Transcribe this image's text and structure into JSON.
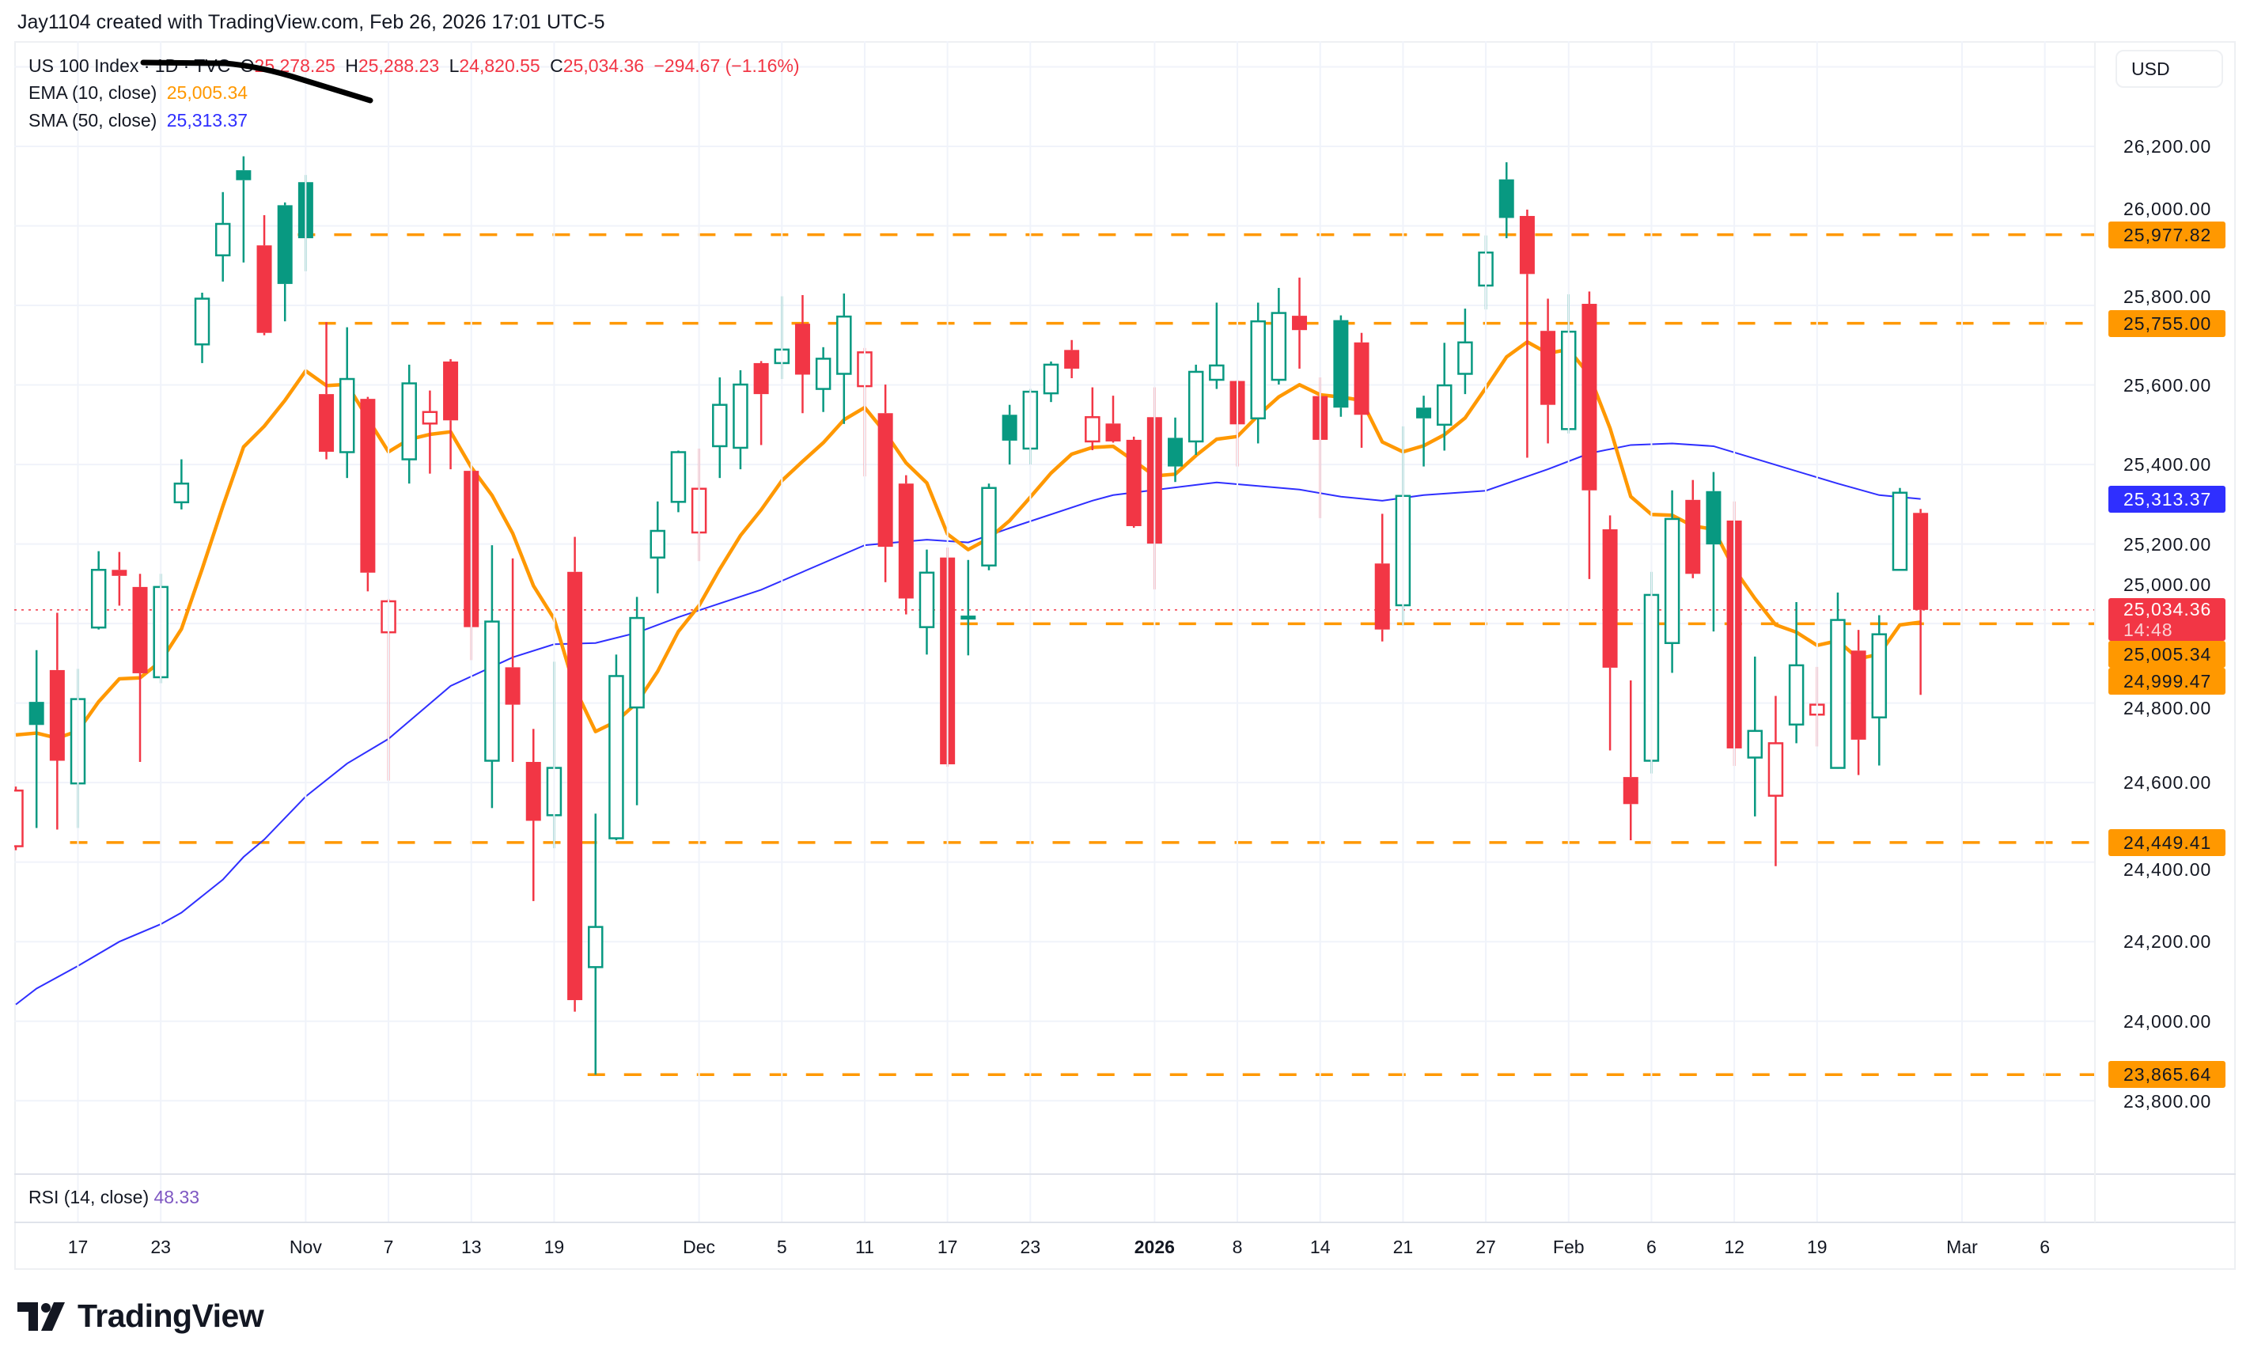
{
  "header": {
    "attribution": "Jay1104 created with TradingView.com, Feb 26, 2026 17:01 UTC-5"
  },
  "legend": {
    "symbol": "US 100 Index · 1D · TVC",
    "o_label": "O",
    "o_value": "25,278.25",
    "h_label": "H",
    "h_value": "25,288.23",
    "l_label": "L",
    "l_value": "24,820.55",
    "c_label": "C",
    "c_value": "25,034.36",
    "change": "−294.67 (−1.16%)",
    "ema_label": "EMA (10, close)",
    "ema_value": "25,005.34",
    "sma_label": "SMA (50, close)",
    "sma_value": "25,313.37"
  },
  "currency_button": "USD",
  "rsi": {
    "label": "RSI (14, close)",
    "value": "48.33"
  },
  "brand": {
    "name": "TradingView"
  },
  "colors": {
    "up": "#089981",
    "down": "#f23645",
    "ema": "#ff9800",
    "sma": "#2f2fff",
    "level": "#ff9800",
    "rsi": "#7e57c2"
  },
  "chart_data": {
    "type": "candlestick",
    "title": "US 100 Index · 1D · TVC",
    "ylim": [
      23740,
      26460
    ],
    "y_ticks": [
      "26,200.00",
      "26,000.00",
      "25,800.00",
      "25,600.00",
      "25,400.00",
      "25,200.00",
      "25,000.00",
      "24,800.00",
      "24,600.00",
      "24,400.00",
      "24,200.00",
      "24,000.00",
      "23,800.00"
    ],
    "y_tick_values": [
      26200,
      26000,
      25800,
      25600,
      25400,
      25200,
      25000,
      24800,
      24600,
      24400,
      24200,
      24000,
      23800
    ],
    "x_ticks": [
      {
        "label": "17",
        "bar": 3
      },
      {
        "label": "23",
        "bar": 7
      },
      {
        "label": "Nov",
        "bar": 14
      },
      {
        "label": "7",
        "bar": 18
      },
      {
        "label": "13",
        "bar": 22
      },
      {
        "label": "19",
        "bar": 26
      },
      {
        "label": "Dec",
        "bar": 33
      },
      {
        "label": "5",
        "bar": 37
      },
      {
        "label": "11",
        "bar": 41
      },
      {
        "label": "17",
        "bar": 45
      },
      {
        "label": "23",
        "bar": 49
      },
      {
        "label": "2026",
        "bar": 55,
        "bold": true
      },
      {
        "label": "8",
        "bar": 59
      },
      {
        "label": "14",
        "bar": 63
      },
      {
        "label": "21",
        "bar": 67
      },
      {
        "label": "27",
        "bar": 71
      },
      {
        "label": "Feb",
        "bar": 75
      },
      {
        "label": "6",
        "bar": 79
      },
      {
        "label": "12",
        "bar": 83
      },
      {
        "label": "19",
        "bar": 87
      },
      {
        "label": "Mar",
        "bar": 94
      },
      {
        "label": "6",
        "bar": 98
      }
    ],
    "candles_fields": [
      "date",
      "open",
      "high",
      "low",
      "close"
    ],
    "candles": [
      [
        "2025-10-14",
        24440,
        24590,
        24430,
        24580
      ],
      [
        "2025-10-15",
        24803,
        24933,
        24486,
        24745
      ],
      [
        "2025-10-16",
        24883,
        25027,
        24482,
        24655
      ],
      [
        "2025-10-17",
        24598,
        24886,
        24486,
        24810
      ],
      [
        "2025-10-20",
        24990,
        25182,
        24985,
        25135
      ],
      [
        "2025-10-21",
        25135,
        25180,
        25045,
        25120
      ],
      [
        "2025-10-22",
        25092,
        25125,
        24652,
        24875
      ],
      [
        "2025-10-23",
        24865,
        25125,
        24850,
        25092
      ],
      [
        "2025-10-24",
        25305,
        25413,
        25287,
        25352
      ],
      [
        "2025-10-27",
        25702,
        25832,
        25655,
        25817
      ],
      [
        "2025-10-28",
        25926,
        26085,
        25860,
        26005
      ],
      [
        "2025-10-29",
        26140,
        26175,
        25908,
        26115
      ],
      [
        "2025-10-30",
        25951,
        26027,
        25725,
        25731
      ],
      [
        "2025-10-31",
        26052,
        26059,
        25760,
        25854
      ],
      [
        "2025-11-03",
        26110,
        26128,
        25886,
        25969
      ],
      [
        "2025-11-04",
        25577,
        25758,
        25413,
        25432
      ],
      [
        "2025-11-05",
        25431,
        25745,
        25366,
        25615
      ],
      [
        "2025-11-06",
        25565,
        25570,
        25081,
        25128
      ],
      [
        "2025-11-07",
        24978,
        25062,
        24605,
        25056
      ],
      [
        "2025-11-10",
        25413,
        25651,
        25352,
        25604
      ],
      [
        "2025-11-11",
        25503,
        25586,
        25377,
        25532
      ],
      [
        "2025-11-12",
        25659,
        25665,
        25388,
        25511
      ],
      [
        "2025-11-13",
        25384,
        25390,
        24908,
        24991
      ],
      [
        "2025-11-14",
        24655,
        25197,
        24536,
        25005
      ],
      [
        "2025-11-17",
        24890,
        25164,
        24652,
        24796
      ],
      [
        "2025-11-18",
        24652,
        24735,
        24302,
        24504
      ],
      [
        "2025-11-19",
        24518,
        24904,
        24435,
        24637
      ],
      [
        "2025-11-20",
        25130,
        25218,
        24024,
        24053
      ],
      [
        "2025-11-21",
        24136,
        24522,
        23865.64,
        24237
      ],
      [
        "2025-11-24",
        24460,
        24922,
        24455,
        24868
      ],
      [
        "2025-11-25",
        24789,
        25067,
        24543,
        25014
      ],
      [
        "2025-11-26",
        25166,
        25307,
        25076,
        25233
      ],
      [
        "2025-11-28",
        25306,
        25435,
        25280,
        25431
      ],
      [
        "2025-12-01",
        25229,
        25440,
        25157,
        25339
      ],
      [
        "2025-12-02",
        25446,
        25619,
        25366,
        25550
      ],
      [
        "2025-12-03",
        25442,
        25637,
        25388,
        25601
      ],
      [
        "2025-12-04",
        25655,
        25660,
        25449,
        25577
      ],
      [
        "2025-12-05",
        25655,
        25823,
        25615,
        25689
      ],
      [
        "2025-12-08",
        25754,
        25826,
        25529,
        25626
      ],
      [
        "2025-12-09",
        25590,
        25695,
        25532,
        25666
      ],
      [
        "2025-12-10",
        25628,
        25830,
        25502,
        25772
      ],
      [
        "2025-12-11",
        25597,
        25693,
        25370,
        25682
      ],
      [
        "2025-12-12",
        25529,
        25601,
        25104,
        25193
      ],
      [
        "2025-12-15",
        25352,
        25373,
        25023,
        25063
      ],
      [
        "2025-12-16",
        24991,
        25186,
        24922,
        25128
      ],
      [
        "2025-12-17",
        25166,
        25191,
        24640,
        24646
      ],
      [
        "2025-12-18",
        25020,
        25160,
        24920,
        25010
      ],
      [
        "2025-12-19",
        25146,
        25352,
        25134,
        25341
      ],
      [
        "2025-12-22",
        25525,
        25550,
        25400,
        25460
      ],
      [
        "2025-12-23",
        25440,
        25590,
        25400,
        25583
      ],
      [
        "2025-12-24",
        25579,
        25659,
        25557,
        25651
      ],
      [
        "2025-12-26",
        25688,
        25713,
        25617,
        25641
      ],
      [
        "2025-12-29",
        25458,
        25594,
        25436,
        25519
      ],
      [
        "2025-12-30",
        25503,
        25573,
        25455,
        25458
      ],
      [
        "2025-12-31",
        25462,
        25470,
        25241,
        25245
      ],
      [
        "2026-01-02",
        25519,
        25594,
        25086,
        25201
      ],
      [
        "2026-01-05",
        25467,
        25518,
        25356,
        25395
      ],
      [
        "2026-01-06",
        25458,
        25651,
        25424,
        25633
      ],
      [
        "2026-01-07",
        25613,
        25807,
        25590,
        25649
      ],
      [
        "2026-01-08",
        25610,
        25612,
        25395,
        25501
      ],
      [
        "2026-01-09",
        25516,
        25807,
        25453,
        25760
      ],
      [
        "2026-01-12",
        25613,
        25844,
        25601,
        25781
      ],
      [
        "2026-01-13",
        25774,
        25870,
        25641,
        25738
      ],
      [
        "2026-01-14",
        25572,
        25619,
        25265,
        25462
      ],
      [
        "2026-01-15",
        25763,
        25775,
        25520,
        25543
      ],
      [
        "2026-01-16",
        25707,
        25731,
        25442,
        25525
      ],
      [
        "2026-01-20",
        25151,
        25276,
        24955,
        24985
      ],
      [
        "2026-01-21",
        25046,
        25496,
        24995,
        25321
      ],
      [
        "2026-01-22",
        25543,
        25573,
        25395,
        25516
      ],
      [
        "2026-01-23",
        25500,
        25706,
        25435,
        25599
      ],
      [
        "2026-01-26",
        25628,
        25792,
        25577,
        25707
      ],
      [
        "2026-01-27",
        25850,
        25976,
        25790,
        25933
      ],
      [
        "2026-01-28",
        26117,
        26160,
        25969,
        26020
      ],
      [
        "2026-01-29",
        26025,
        26041,
        25417,
        25879
      ],
      [
        "2026-01-30",
        25736,
        25817,
        25453,
        25550
      ],
      [
        "2026-02-02",
        25489,
        25828,
        25478,
        25734
      ],
      [
        "2026-02-03",
        25804,
        25835,
        25112,
        25335
      ],
      [
        "2026-02-04",
        25237,
        25272,
        24681,
        24889
      ],
      [
        "2026-02-05",
        24614,
        24857,
        24455,
        24546
      ],
      [
        "2026-02-06",
        24655,
        25130,
        24623,
        25072
      ],
      [
        "2026-02-09",
        24951,
        25335,
        24876,
        25263
      ],
      [
        "2026-02-10",
        25311,
        25361,
        25114,
        25125
      ],
      [
        "2026-02-11",
        25333,
        25381,
        24980,
        25199
      ],
      [
        "2026-02-12",
        25259,
        25307,
        24642,
        24686
      ],
      [
        "2026-02-13",
        24663,
        24917,
        24515,
        24730
      ],
      [
        "2026-02-17",
        24567,
        24818,
        24390,
        24699
      ],
      [
        "2026-02-18",
        24746,
        25054,
        24699,
        24895
      ],
      [
        "2026-02-19",
        24771,
        24891,
        24691,
        24796
      ],
      [
        "2026-02-20",
        24637,
        25078,
        24635,
        25009
      ],
      [
        "2026-02-23",
        24932,
        24984,
        24619,
        24708
      ],
      [
        "2026-02-24",
        24764,
        25021,
        24643,
        24973
      ],
      [
        "2026-02-25",
        25135,
        25341,
        25135,
        25329.03
      ],
      [
        "2026-02-26",
        25278.25,
        25288.23,
        24820.55,
        25034.36
      ]
    ],
    "ema10": {
      "period": 10,
      "initial": 24720
    },
    "sma50_points": [
      [
        0,
        24042
      ],
      [
        1,
        24082
      ],
      [
        3,
        24139
      ],
      [
        5,
        24200
      ],
      [
        7,
        24244
      ],
      [
        8,
        24273
      ],
      [
        10,
        24356
      ],
      [
        11,
        24413
      ],
      [
        12,
        24457
      ],
      [
        14,
        24565
      ],
      [
        16,
        24648
      ],
      [
        18,
        24710
      ],
      [
        21,
        24843
      ],
      [
        24,
        24915
      ],
      [
        26,
        24948
      ],
      [
        28,
        24951
      ],
      [
        30,
        24977
      ],
      [
        32,
        25016
      ],
      [
        36,
        25085
      ],
      [
        41,
        25197
      ],
      [
        44,
        25211
      ],
      [
        46,
        25204
      ],
      [
        48,
        25240
      ],
      [
        52,
        25309
      ],
      [
        53,
        25323
      ],
      [
        58,
        25355
      ],
      [
        62,
        25337
      ],
      [
        64,
        25319
      ],
      [
        66,
        25309
      ],
      [
        68,
        25323
      ],
      [
        71,
        25334
      ],
      [
        74,
        25388
      ],
      [
        76,
        25428
      ],
      [
        78,
        25449
      ],
      [
        80,
        25453
      ],
      [
        82,
        25446
      ],
      [
        85,
        25399
      ],
      [
        88,
        25352
      ],
      [
        90,
        25323
      ],
      [
        92,
        25313.37
      ]
    ],
    "levels": [
      {
        "value": 25977.82,
        "label": "25,977.82",
        "from_bar": 14
      },
      {
        "value": 25755.0,
        "label": "25,755.00",
        "from_bar": 15
      },
      {
        "value": 24999.47,
        "label": "24,999.47",
        "from_bar": 46
      },
      {
        "value": 24449.41,
        "label": "24,449.41",
        "from_bar": 3
      },
      {
        "value": 23865.64,
        "label": "23,865.64",
        "from_bar": 28
      }
    ],
    "last_price": {
      "value": 25034.36,
      "label": "25,034.36",
      "countdown": "14:48"
    },
    "ema_badge": {
      "value": 25005.34,
      "label": "25,005.34"
    },
    "sma_badge": {
      "value": 25313.37,
      "label": "25,313.37"
    }
  }
}
